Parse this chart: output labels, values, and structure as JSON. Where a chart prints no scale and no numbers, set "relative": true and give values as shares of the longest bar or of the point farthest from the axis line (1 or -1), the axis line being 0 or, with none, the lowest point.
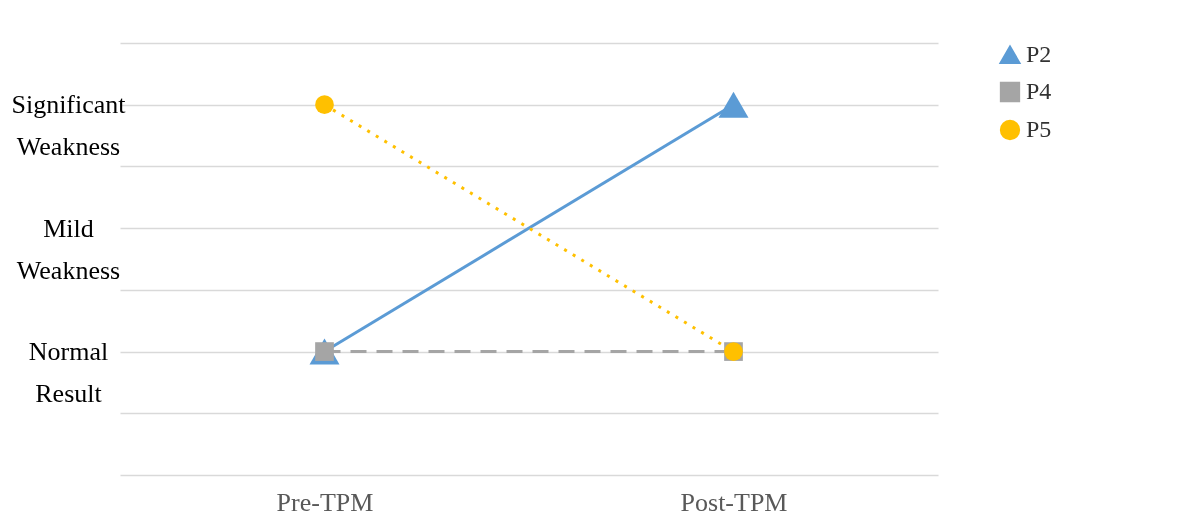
{
  "chart_data": {
    "type": "line",
    "relative": true,
    "categories": [
      "Pre-TPM",
      "Post-TPM"
    ],
    "series": [
      {
        "name": "P2",
        "color": "#5b9bd5",
        "values": [
          0,
          1
        ],
        "marker": "triangle",
        "line_style": "solid"
      },
      {
        "name": "P4",
        "color": "#a5a5a5",
        "values": [
          0,
          0
        ],
        "marker": "square",
        "line_style": "dashed"
      },
      {
        "name": "P5",
        "color": "#ffc000",
        "values": [
          1,
          0
        ],
        "marker": "circle",
        "line_style": "dotted"
      }
    ],
    "annotations": [
      "Normal Result",
      "Mild Weakness",
      "Significant Weakness"
    ],
    "grid": "y",
    "legend": "top right"
  }
}
